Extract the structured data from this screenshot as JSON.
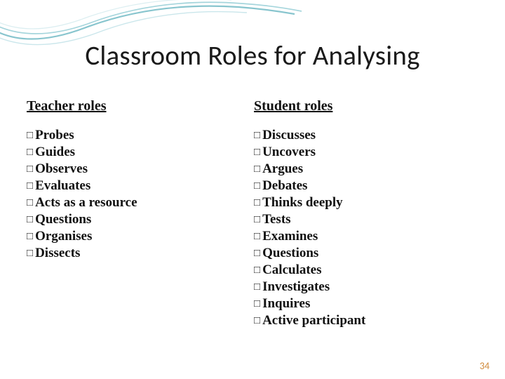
{
  "title": "Classroom Roles for Analysing",
  "title_fontsize": 39,
  "title_color": "#1a1a1a",
  "heading_fontsize": 20,
  "item_fontsize": 19,
  "item_line_height": 23,
  "checkbox_glyph": "□",
  "checkbox_color": "#262626",
  "checkbox_fontsize": 15,
  "checkbox_margin_right": 3,
  "page_number": "34",
  "page_number_fontsize": 14,
  "page_number_color": "#d08a3a",
  "columns": [
    {
      "heading": "Teacher roles",
      "items": [
        "Probes",
        "Guides",
        "Observes",
        "Evaluates",
        "Acts as a resource",
        "Questions",
        "Organises",
        "Dissects"
      ]
    },
    {
      "heading": "Student roles",
      "items": [
        "Discusses",
        "Uncovers",
        "Argues",
        "Debates",
        "Thinks deeply",
        "Tests",
        "Examines",
        "Questions",
        "Calculates",
        "Investigates",
        "Inquires",
        "Active participant"
      ]
    }
  ]
}
